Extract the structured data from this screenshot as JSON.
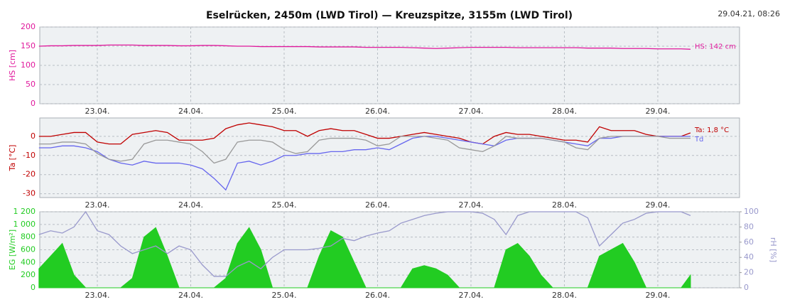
{
  "title": "Eselrücken, 2450m (LWD Tirol) — Kreuzspitze, 3155m (LWD Tirol)",
  "timestamp": "29.04.21, 08:26",
  "chart_data": [
    {
      "type": "line",
      "ylabel": "HS [cm]",
      "x": [
        22.375,
        22.5,
        22.625,
        22.75,
        22.875,
        23,
        23.125,
        23.25,
        23.375,
        23.5,
        23.625,
        23.75,
        23.875,
        24,
        24.125,
        24.25,
        24.375,
        24.5,
        24.625,
        24.75,
        24.875,
        25,
        25.125,
        25.25,
        25.375,
        25.5,
        25.625,
        25.75,
        25.875,
        26,
        26.125,
        26.25,
        26.375,
        26.5,
        26.625,
        26.75,
        26.875,
        27,
        27.125,
        27.25,
        27.375,
        27.5,
        27.625,
        27.75,
        27.875,
        28,
        28.125,
        28.25,
        28.375,
        28.5,
        28.625,
        28.75,
        28.875,
        29,
        29.125,
        29.25,
        29.35
      ],
      "xlim": [
        22.384,
        29.875
      ],
      "xticks": [
        {
          "value": 23,
          "label": "23.04."
        },
        {
          "value": 24,
          "label": "24.04."
        },
        {
          "value": 25,
          "label": "25.04."
        },
        {
          "value": 26,
          "label": "26.04."
        },
        {
          "value": 27,
          "label": "27.04."
        },
        {
          "value": 28,
          "label": "28.04."
        },
        {
          "value": 29,
          "label": "29.04."
        }
      ],
      "ylim": [
        0,
        200
      ],
      "yticks": [
        0,
        50,
        100,
        150,
        200
      ],
      "grid": true,
      "series": [
        {
          "name": "HS: 142 cm",
          "color": "#e0189c",
          "values": [
            150,
            151,
            151,
            152,
            152,
            152,
            153,
            153,
            153,
            152,
            152,
            152,
            151,
            151,
            152,
            152,
            151,
            150,
            150,
            149,
            149,
            149,
            149,
            149,
            148,
            148,
            148,
            148,
            147,
            147,
            147,
            147,
            146,
            145,
            144,
            145,
            146,
            147,
            147,
            147,
            147,
            146,
            146,
            146,
            146,
            146,
            146,
            145,
            145,
            145,
            144,
            144,
            144,
            143,
            143,
            143,
            142
          ]
        }
      ]
    },
    {
      "type": "line",
      "ylabel": "Ta [°C]",
      "x": [
        22.375,
        22.5,
        22.625,
        22.75,
        22.875,
        23,
        23.125,
        23.25,
        23.375,
        23.5,
        23.625,
        23.75,
        23.875,
        24,
        24.125,
        24.25,
        24.375,
        24.5,
        24.625,
        24.75,
        24.875,
        25,
        25.125,
        25.25,
        25.375,
        25.5,
        25.625,
        25.75,
        25.875,
        26,
        26.125,
        26.25,
        26.375,
        26.5,
        26.625,
        26.75,
        26.875,
        27,
        27.125,
        27.25,
        27.375,
        27.5,
        27.625,
        27.75,
        27.875,
        28,
        28.125,
        28.25,
        28.375,
        28.5,
        28.625,
        28.75,
        28.875,
        29,
        29.125,
        29.25,
        29.35
      ],
      "xlim": [
        22.384,
        29.875
      ],
      "xticks": [
        {
          "value": 23,
          "label": "23.04."
        },
        {
          "value": 24,
          "label": "24.04."
        },
        {
          "value": 25,
          "label": "25.04."
        },
        {
          "value": 26,
          "label": "26.04."
        },
        {
          "value": 27,
          "label": "27.04."
        },
        {
          "value": 28,
          "label": "28.04."
        },
        {
          "value": 29,
          "label": "29.04."
        }
      ],
      "ylim": [
        -32,
        9.6
      ],
      "yticks": [
        -30,
        -20,
        -10,
        0
      ],
      "grid": true,
      "series": [
        {
          "name": "Ta: 1,8 °C",
          "color": "#c00000",
          "values": [
            0,
            0,
            1,
            2,
            2,
            -3,
            -4,
            -4,
            1,
            2,
            3,
            2,
            -2,
            -2,
            -2,
            -1,
            4,
            6,
            7,
            6,
            5,
            3,
            3,
            0,
            3,
            4,
            3,
            3,
            1,
            -1,
            -1,
            0,
            1,
            2,
            1,
            0,
            -1,
            -3,
            -4,
            0,
            2,
            1,
            1,
            0,
            -1,
            -2,
            -2,
            -3,
            5,
            3,
            3,
            3,
            1,
            0,
            0,
            0,
            1.8
          ]
        },
        {
          "name": "Td",
          "color": "#6666ee",
          "values": [
            -6,
            -6,
            -5,
            -5,
            -6,
            -8,
            -12,
            -14,
            -15,
            -13,
            -14,
            -14,
            -14,
            -15,
            -17,
            -22,
            -28,
            -14,
            -13,
            -15,
            -13,
            -10,
            -10,
            -9,
            -9,
            -8,
            -8,
            -7,
            -7,
            -6,
            -7,
            -4,
            -1,
            0,
            0,
            -1,
            -2,
            -3,
            -4,
            -5,
            -2,
            -1,
            -1,
            -1,
            -2,
            -3,
            -4,
            -5,
            -1,
            -1,
            0,
            0,
            0,
            0,
            0,
            0,
            0
          ]
        },
        {
          "color": "#999999",
          "values": [
            -4,
            -4,
            -3,
            -3,
            -4,
            -9,
            -12,
            -13,
            -12,
            -4,
            -2,
            -2,
            -3,
            -4,
            -8,
            -14,
            -12,
            -3,
            -2,
            -2,
            -3,
            -7,
            -9,
            -8,
            -2,
            -1,
            -1,
            -1,
            -2,
            -5,
            -4,
            0,
            0,
            0,
            -1,
            -2,
            -6,
            -7,
            -8,
            -5,
            0,
            -1,
            -1,
            -1,
            -2,
            -3,
            -6,
            -7,
            -1,
            0,
            0,
            0,
            0,
            0,
            -1,
            -1,
            -1
          ]
        }
      ]
    },
    {
      "type": "line",
      "ylabel": "EG [W/m²]",
      "y2label": "rH [%]",
      "x": [
        22.375,
        22.5,
        22.625,
        22.75,
        22.875,
        23,
        23.125,
        23.25,
        23.375,
        23.5,
        23.625,
        23.75,
        23.875,
        24,
        24.125,
        24.25,
        24.375,
        24.5,
        24.625,
        24.75,
        24.875,
        25,
        25.125,
        25.25,
        25.375,
        25.5,
        25.625,
        25.75,
        25.875,
        26,
        26.125,
        26.25,
        26.375,
        26.5,
        26.625,
        26.75,
        26.875,
        27,
        27.125,
        27.25,
        27.375,
        27.5,
        27.625,
        27.75,
        27.875,
        28,
        28.125,
        28.25,
        28.375,
        28.5,
        28.625,
        28.75,
        28.875,
        29,
        29.125,
        29.25,
        29.35
      ],
      "xlim": [
        22.384,
        29.875
      ],
      "xticks": [
        {
          "value": 23,
          "label": "23.04."
        },
        {
          "value": 24,
          "label": "24.04."
        },
        {
          "value": 25,
          "label": "25.04."
        },
        {
          "value": 26,
          "label": "26.04."
        },
        {
          "value": 27,
          "label": "27.04."
        },
        {
          "value": 28,
          "label": "28.04."
        },
        {
          "value": 29,
          "label": "29.04."
        }
      ],
      "ylim": [
        0,
        1200
      ],
      "yticks": [
        0,
        200,
        400,
        600,
        800,
        {
          "value": 1000,
          "label": "1 000"
        },
        {
          "value": 1200,
          "label": "1 200"
        }
      ],
      "y2lim": [
        0,
        100
      ],
      "y2ticks": [
        0,
        20,
        40,
        60,
        80,
        100
      ],
      "grid": true,
      "series": [
        {
          "type": "area",
          "color": "#22cc22",
          "values": [
            300,
            500,
            700,
            200,
            0,
            0,
            0,
            0,
            150,
            800,
            950,
            500,
            0,
            0,
            0,
            0,
            150,
            700,
            950,
            600,
            0,
            0,
            0,
            0,
            500,
            900,
            800,
            400,
            0,
            0,
            0,
            0,
            300,
            350,
            300,
            200,
            0,
            0,
            0,
            0,
            600,
            700,
            500,
            200,
            0,
            0,
            0,
            0,
            500,
            600,
            700,
            400,
            0,
            0,
            0,
            0,
            200
          ]
        },
        {
          "axis": "y2",
          "color": "#9999cc",
          "values": [
            70,
            75,
            72,
            80,
            100,
            75,
            70,
            55,
            45,
            50,
            55,
            45,
            55,
            50,
            30,
            15,
            15,
            28,
            35,
            25,
            40,
            50,
            50,
            50,
            52,
            55,
            65,
            62,
            68,
            72,
            75,
            85,
            90,
            95,
            98,
            100,
            100,
            100,
            98,
            90,
            70,
            95,
            100,
            100,
            100,
            100,
            100,
            92,
            55,
            70,
            85,
            90,
            98,
            100,
            100,
            100,
            95
          ]
        }
      ]
    }
  ]
}
